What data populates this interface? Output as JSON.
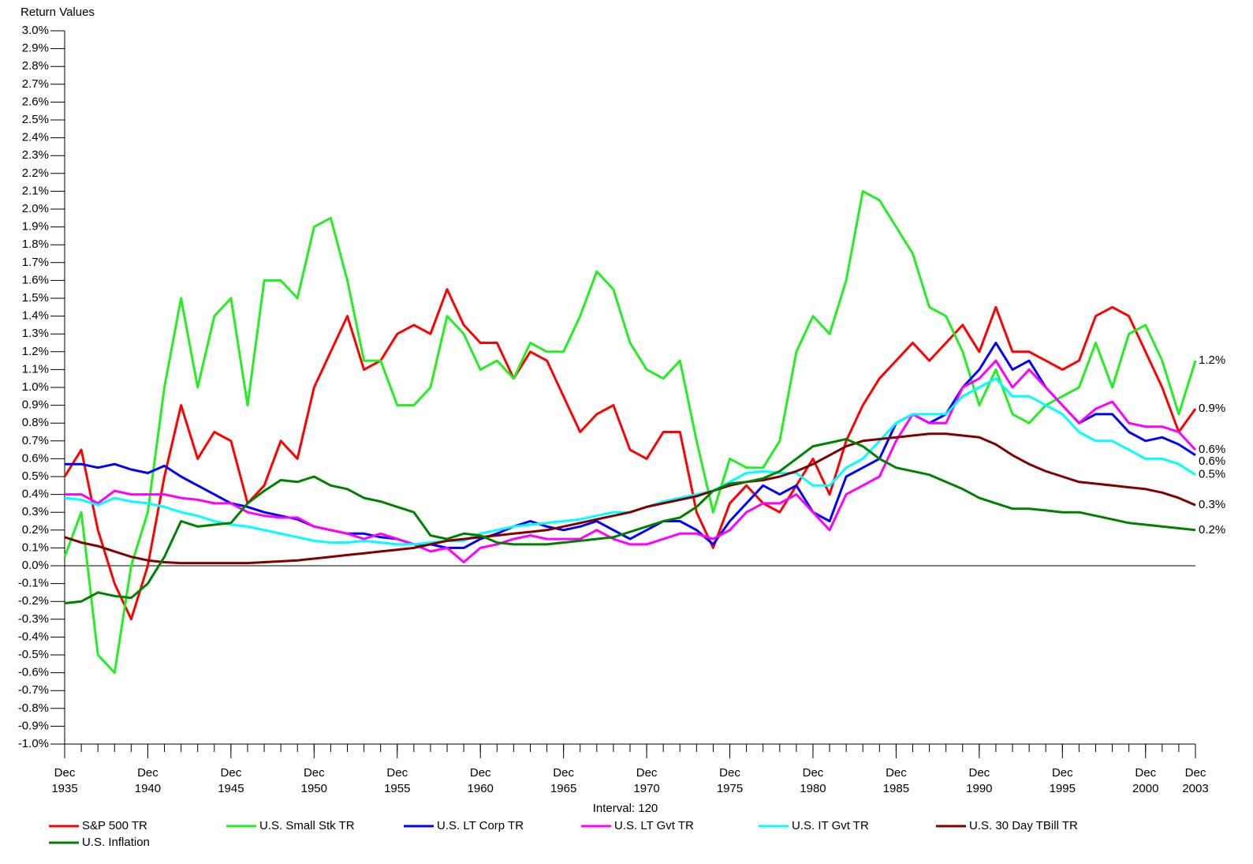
{
  "chart_data": {
    "type": "line",
    "ylabel": "Return Values",
    "xlabel": "Interval: 120",
    "x": [
      "Dec 1935",
      "Dec 1936",
      "Dec 1937",
      "Dec 1938",
      "Dec 1939",
      "Dec 1940",
      "Dec 1941",
      "Dec 1942",
      "Dec 1943",
      "Dec 1944",
      "Dec 1945",
      "Dec 1946",
      "Dec 1947",
      "Dec 1948",
      "Dec 1949",
      "Dec 1950",
      "Dec 1951",
      "Dec 1952",
      "Dec 1953",
      "Dec 1954",
      "Dec 1955",
      "Dec 1956",
      "Dec 1957",
      "Dec 1958",
      "Dec 1959",
      "Dec 1960",
      "Dec 1961",
      "Dec 1962",
      "Dec 1963",
      "Dec 1964",
      "Dec 1965",
      "Dec 1966",
      "Dec 1967",
      "Dec 1968",
      "Dec 1969",
      "Dec 1970",
      "Dec 1971",
      "Dec 1972",
      "Dec 1973",
      "Dec 1974",
      "Dec 1975",
      "Dec 1976",
      "Dec 1977",
      "Dec 1978",
      "Dec 1979",
      "Dec 1980",
      "Dec 1981",
      "Dec 1982",
      "Dec 1983",
      "Dec 1984",
      "Dec 1985",
      "Dec 1986",
      "Dec 1987",
      "Dec 1988",
      "Dec 1989",
      "Dec 1990",
      "Dec 1991",
      "Dec 1992",
      "Dec 1993",
      "Dec 1994",
      "Dec 1995",
      "Dec 1996",
      "Dec 1997",
      "Dec 1998",
      "Dec 1999",
      "Dec 2000",
      "Dec 2001",
      "Dec 2002",
      "Dec 2003"
    ],
    "series": [
      {
        "name": "S&P 500 TR",
        "color": "#ff0000",
        "end_label": "0.9%",
        "values": [
          0.5,
          0.65,
          0.2,
          -0.1,
          -0.3,
          0.0,
          0.5,
          0.9,
          0.6,
          0.75,
          0.7,
          0.35,
          0.45,
          0.7,
          0.6,
          1.0,
          1.2,
          1.4,
          1.1,
          1.15,
          1.3,
          1.35,
          1.3,
          1.55,
          1.35,
          1.25,
          1.25,
          1.05,
          1.2,
          1.15,
          0.95,
          0.75,
          0.85,
          0.9,
          0.65,
          0.6,
          0.75,
          0.75,
          0.3,
          0.1,
          0.35,
          0.45,
          0.35,
          0.3,
          0.45,
          0.6,
          0.4,
          0.7,
          0.9,
          1.05,
          1.15,
          1.25,
          1.15,
          1.25,
          1.35,
          1.2,
          1.45,
          1.2,
          1.2,
          1.15,
          1.1,
          1.15,
          1.4,
          1.45,
          1.4,
          1.2,
          1.0,
          0.75,
          0.88
        ]
      },
      {
        "name": "U.S. Small Stk TR",
        "color": "#22ee22",
        "end_label": "1.2%",
        "values": [
          0.05,
          0.3,
          -0.5,
          -0.6,
          0.0,
          0.3,
          1.0,
          1.5,
          1.0,
          1.4,
          1.5,
          0.9,
          1.6,
          1.6,
          1.5,
          1.9,
          1.95,
          1.6,
          1.15,
          1.15,
          0.9,
          0.9,
          1.0,
          1.4,
          1.3,
          1.1,
          1.15,
          1.05,
          1.25,
          1.2,
          1.2,
          1.4,
          1.65,
          1.55,
          1.25,
          1.1,
          1.05,
          1.15,
          0.7,
          0.3,
          0.6,
          0.55,
          0.55,
          0.7,
          1.2,
          1.4,
          1.3,
          1.6,
          2.1,
          2.05,
          1.9,
          1.75,
          1.45,
          1.4,
          1.2,
          0.9,
          1.1,
          0.85,
          0.8,
          0.9,
          0.95,
          1.0,
          1.25,
          1.0,
          1.3,
          1.35,
          1.15,
          0.85,
          1.15
        ]
      },
      {
        "name": "U.S. LT Corp TR",
        "color": "#0000ff",
        "end_label": "0.6%",
        "values": [
          0.57,
          0.57,
          0.55,
          0.57,
          0.54,
          0.52,
          0.56,
          0.5,
          0.45,
          0.4,
          0.35,
          0.33,
          0.3,
          0.28,
          0.26,
          0.22,
          0.2,
          0.18,
          0.18,
          0.16,
          0.15,
          0.12,
          0.12,
          0.1,
          0.1,
          0.15,
          0.18,
          0.22,
          0.25,
          0.22,
          0.2,
          0.22,
          0.25,
          0.2,
          0.15,
          0.2,
          0.25,
          0.25,
          0.2,
          0.12,
          0.25,
          0.35,
          0.45,
          0.4,
          0.45,
          0.3,
          0.25,
          0.5,
          0.55,
          0.6,
          0.8,
          0.85,
          0.8,
          0.85,
          1.0,
          1.1,
          1.25,
          1.1,
          1.15,
          1.0,
          0.9,
          0.8,
          0.85,
          0.85,
          0.75,
          0.7,
          0.72,
          0.68,
          0.62
        ]
      },
      {
        "name": "U.S. LT Gvt TR",
        "color": "#ff00ff",
        "end_label": "0.6%",
        "values": [
          0.4,
          0.4,
          0.35,
          0.42,
          0.4,
          0.4,
          0.4,
          0.38,
          0.37,
          0.35,
          0.35,
          0.3,
          0.28,
          0.27,
          0.27,
          0.22,
          0.2,
          0.18,
          0.15,
          0.18,
          0.15,
          0.12,
          0.08,
          0.1,
          0.02,
          0.1,
          0.12,
          0.15,
          0.17,
          0.15,
          0.15,
          0.15,
          0.2,
          0.15,
          0.12,
          0.12,
          0.15,
          0.18,
          0.18,
          0.15,
          0.2,
          0.3,
          0.35,
          0.35,
          0.4,
          0.3,
          0.2,
          0.4,
          0.45,
          0.5,
          0.7,
          0.85,
          0.8,
          0.8,
          1.0,
          1.05,
          1.15,
          1.0,
          1.1,
          1.0,
          0.9,
          0.8,
          0.88,
          0.92,
          0.8,
          0.78,
          0.78,
          0.75,
          0.65
        ]
      },
      {
        "name": "U.S. IT Gvt TR",
        "color": "#00ffff",
        "end_label": "0.5%",
        "values": [
          0.38,
          0.37,
          0.34,
          0.38,
          0.36,
          0.35,
          0.33,
          0.3,
          0.28,
          0.25,
          0.23,
          0.22,
          0.2,
          0.18,
          0.16,
          0.14,
          0.13,
          0.13,
          0.14,
          0.13,
          0.12,
          0.12,
          0.13,
          0.14,
          0.14,
          0.18,
          0.2,
          0.22,
          0.23,
          0.24,
          0.25,
          0.26,
          0.28,
          0.3,
          0.3,
          0.33,
          0.36,
          0.38,
          0.4,
          0.42,
          0.47,
          0.52,
          0.53,
          0.52,
          0.52,
          0.45,
          0.45,
          0.55,
          0.6,
          0.7,
          0.8,
          0.85,
          0.85,
          0.85,
          0.95,
          1.0,
          1.05,
          0.95,
          0.95,
          0.9,
          0.85,
          0.75,
          0.7,
          0.7,
          0.65,
          0.6,
          0.6,
          0.57,
          0.51
        ]
      },
      {
        "name": "U.S. 30 Day TBill TR",
        "color": "#800000",
        "end_label": "0.3%",
        "values": [
          0.16,
          0.13,
          0.11,
          0.08,
          0.05,
          0.03,
          0.02,
          0.015,
          0.015,
          0.015,
          0.015,
          0.015,
          0.02,
          0.025,
          0.03,
          0.04,
          0.05,
          0.06,
          0.07,
          0.08,
          0.09,
          0.1,
          0.12,
          0.14,
          0.15,
          0.16,
          0.17,
          0.18,
          0.19,
          0.2,
          0.22,
          0.24,
          0.26,
          0.28,
          0.3,
          0.33,
          0.35,
          0.37,
          0.39,
          0.42,
          0.45,
          0.47,
          0.48,
          0.5,
          0.53,
          0.57,
          0.62,
          0.67,
          0.7,
          0.71,
          0.72,
          0.73,
          0.74,
          0.74,
          0.73,
          0.72,
          0.68,
          0.62,
          0.57,
          0.53,
          0.5,
          0.47,
          0.46,
          0.45,
          0.44,
          0.43,
          0.41,
          0.38,
          0.34
        ]
      },
      {
        "name": "U.S. Inflation",
        "color": "#008000",
        "end_label": "0.2%",
        "values": [
          -0.21,
          -0.2,
          -0.15,
          -0.17,
          -0.18,
          -0.1,
          0.05,
          0.25,
          0.22,
          0.23,
          0.24,
          0.35,
          0.42,
          0.48,
          0.47,
          0.5,
          0.45,
          0.43,
          0.38,
          0.36,
          0.33,
          0.3,
          0.17,
          0.15,
          0.18,
          0.17,
          0.13,
          0.12,
          0.12,
          0.12,
          0.13,
          0.14,
          0.15,
          0.16,
          0.19,
          0.22,
          0.25,
          0.27,
          0.33,
          0.42,
          0.46,
          0.47,
          0.49,
          0.53,
          0.6,
          0.67,
          0.69,
          0.71,
          0.67,
          0.6,
          0.55,
          0.53,
          0.51,
          0.47,
          0.43,
          0.38,
          0.35,
          0.32,
          0.32,
          0.31,
          0.3,
          0.3,
          0.28,
          0.26,
          0.24,
          0.23,
          0.22,
          0.21,
          0.2
        ]
      }
    ],
    "xlim": [
      "Dec 1935",
      "Dec 2003"
    ],
    "xticks": [
      "Dec 1935",
      "Dec 1940",
      "Dec 1945",
      "Dec 1950",
      "Dec 1955",
      "Dec 1960",
      "Dec 1965",
      "Dec 1970",
      "Dec 1975",
      "Dec 1980",
      "Dec 1985",
      "Dec 1990",
      "Dec 1995",
      "Dec 2000",
      "Dec 2003"
    ],
    "ylim": [
      -1.0,
      3.0
    ],
    "yticks": [
      {
        "value": -1.0,
        "label": "-1.0%"
      },
      {
        "value": -0.9,
        "label": "-0.9%"
      },
      {
        "value": -0.8,
        "label": "-0.8%"
      },
      {
        "value": -0.7,
        "label": "-0.7%"
      },
      {
        "value": -0.6,
        "label": "-0.6%"
      },
      {
        "value": -0.5,
        "label": "-0.5%"
      },
      {
        "value": -0.4,
        "label": "-0.4%"
      },
      {
        "value": -0.3,
        "label": "-0.3%"
      },
      {
        "value": -0.2,
        "label": "-0.2%"
      },
      {
        "value": -0.1,
        "label": "-0.1%"
      },
      {
        "value": 0.0,
        "label": "0.0%"
      },
      {
        "value": 0.1,
        "label": "0.1%"
      },
      {
        "value": 0.2,
        "label": "0.2%"
      },
      {
        "value": 0.3,
        "label": "0.3%"
      },
      {
        "value": 0.4,
        "label": "0.4%"
      },
      {
        "value": 0.5,
        "label": "0.5%"
      },
      {
        "value": 0.6,
        "label": "0.6%"
      },
      {
        "value": 0.7,
        "label": "0.7%"
      },
      {
        "value": 0.8,
        "label": "0.8%"
      },
      {
        "value": 0.9,
        "label": "0.9%"
      },
      {
        "value": 1.0,
        "label": "1.0%"
      },
      {
        "value": 1.1,
        "label": "1.1%"
      },
      {
        "value": 1.2,
        "label": "1.2%"
      },
      {
        "value": 1.3,
        "label": "1.3%"
      },
      {
        "value": 1.4,
        "label": "1.4%"
      },
      {
        "value": 1.5,
        "label": "1.5%"
      },
      {
        "value": 1.6,
        "label": "1.6%"
      },
      {
        "value": 1.7,
        "label": "1.7%"
      },
      {
        "value": 1.8,
        "label": "1.8%"
      },
      {
        "value": 1.9,
        "label": "1.9%"
      },
      {
        "value": 2.0,
        "label": "2.0%"
      },
      {
        "value": 2.1,
        "label": "2.1%"
      },
      {
        "value": 2.2,
        "label": "2.2%"
      },
      {
        "value": 2.3,
        "label": "2.3%"
      },
      {
        "value": 2.4,
        "label": "2.4%"
      },
      {
        "value": 2.5,
        "label": "2.5%"
      },
      {
        "value": 2.6,
        "label": "2.6%"
      },
      {
        "value": 2.7,
        "label": "2.7%"
      },
      {
        "value": 2.8,
        "label": "2.8%"
      },
      {
        "value": 2.9,
        "label": "2.9%"
      },
      {
        "value": 3.0,
        "label": "3.0%"
      }
    ],
    "grid": false,
    "legend": "bottom"
  }
}
